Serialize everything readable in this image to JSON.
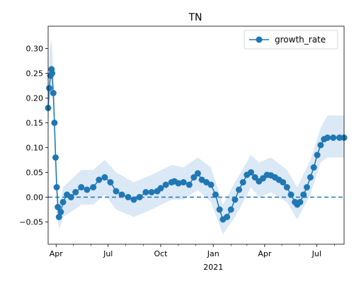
{
  "chart_data": {
    "type": "line",
    "title": "TN",
    "xlabel": "",
    "ylabel": "",
    "x_range": [
      "2020-03-18",
      "2021-08-18"
    ],
    "ylim": [
      -0.095,
      0.345
    ],
    "y_ticks": [
      -0.05,
      0.0,
      0.05,
      0.1,
      0.15,
      0.2,
      0.25,
      0.3
    ],
    "y_tick_labels": [
      "−0.05",
      "0.00",
      "0.05",
      "0.10",
      "0.15",
      "0.20",
      "0.25",
      "0.30"
    ],
    "x_ticks": [
      {
        "date": "2020-04-01",
        "label": "Apr"
      },
      {
        "date": "2020-07-01",
        "label": "Jul"
      },
      {
        "date": "2020-10-01",
        "label": "Oct"
      },
      {
        "date": "2021-01-01",
        "label": "Jan"
      },
      {
        "date": "2021-04-01",
        "label": "Apr"
      },
      {
        "date": "2021-07-01",
        "label": "Jul"
      }
    ],
    "x_secondary_label": "2021",
    "minor_ticks": [
      "2020-05-01",
      "2020-06-01",
      "2020-08-01",
      "2020-09-01",
      "2020-11-01",
      "2020-12-01",
      "2021-02-01",
      "2021-03-01",
      "2021-05-01",
      "2021-06-01",
      "2021-08-01"
    ],
    "grid": false,
    "legend": {
      "position": "top-right",
      "entries": [
        "growth_rate"
      ]
    },
    "reference_line": {
      "y": 0.0,
      "style": "dashed"
    },
    "colors": {
      "series": "#1f77b4",
      "band": "#dbe8f5"
    },
    "series": [
      {
        "name": "growth_rate",
        "points": [
          [
            "2020-03-18",
            0.18
          ],
          [
            "2020-03-20",
            0.22
          ],
          [
            "2020-03-22",
            0.245
          ],
          [
            "2020-03-24",
            0.258
          ],
          [
            "2020-03-25",
            0.25
          ],
          [
            "2020-03-27",
            0.21
          ],
          [
            "2020-03-29",
            0.15
          ],
          [
            "2020-03-31",
            0.08
          ],
          [
            "2020-04-02",
            0.02
          ],
          [
            "2020-04-04",
            -0.02
          ],
          [
            "2020-04-06",
            -0.04
          ],
          [
            "2020-04-09",
            -0.03
          ],
          [
            "2020-04-13",
            -0.01
          ],
          [
            "2020-04-20",
            0.005
          ],
          [
            "2020-04-27",
            0.0
          ],
          [
            "2020-05-05",
            0.01
          ],
          [
            "2020-05-15",
            0.02
          ],
          [
            "2020-05-25",
            0.015
          ],
          [
            "2020-06-05",
            0.02
          ],
          [
            "2020-06-15",
            0.035
          ],
          [
            "2020-06-25",
            0.04
          ],
          [
            "2020-07-05",
            0.03
          ],
          [
            "2020-07-15",
            0.012
          ],
          [
            "2020-07-25",
            0.005
          ],
          [
            "2020-08-05",
            0.0
          ],
          [
            "2020-08-15",
            -0.005
          ],
          [
            "2020-08-25",
            0.0
          ],
          [
            "2020-09-05",
            0.01
          ],
          [
            "2020-09-15",
            0.01
          ],
          [
            "2020-09-25",
            0.012
          ],
          [
            "2020-10-01",
            0.018
          ],
          [
            "2020-10-10",
            0.025
          ],
          [
            "2020-10-20",
            0.03
          ],
          [
            "2020-10-25",
            0.032
          ],
          [
            "2020-11-01",
            0.028
          ],
          [
            "2020-11-10",
            0.03
          ],
          [
            "2020-11-20",
            0.025
          ],
          [
            "2020-11-28",
            0.04
          ],
          [
            "2020-12-05",
            0.048
          ],
          [
            "2020-12-12",
            0.035
          ],
          [
            "2020-12-20",
            0.03
          ],
          [
            "2020-12-28",
            0.025
          ],
          [
            "2021-01-05",
            0.005
          ],
          [
            "2021-01-12",
            -0.025
          ],
          [
            "2021-01-18",
            -0.045
          ],
          [
            "2021-01-25",
            -0.04
          ],
          [
            "2021-02-01",
            -0.025
          ],
          [
            "2021-02-08",
            -0.005
          ],
          [
            "2021-02-15",
            0.015
          ],
          [
            "2021-02-22",
            0.03
          ],
          [
            "2021-03-01",
            0.045
          ],
          [
            "2021-03-08",
            0.05
          ],
          [
            "2021-03-15",
            0.04
          ],
          [
            "2021-03-22",
            0.032
          ],
          [
            "2021-03-29",
            0.038
          ],
          [
            "2021-04-05",
            0.045
          ],
          [
            "2021-04-12",
            0.044
          ],
          [
            "2021-04-19",
            0.04
          ],
          [
            "2021-04-26",
            0.035
          ],
          [
            "2021-05-03",
            0.03
          ],
          [
            "2021-05-10",
            0.02
          ],
          [
            "2021-05-17",
            0.005
          ],
          [
            "2021-05-24",
            -0.01
          ],
          [
            "2021-05-28",
            -0.015
          ],
          [
            "2021-06-02",
            -0.01
          ],
          [
            "2021-06-08",
            0.005
          ],
          [
            "2021-06-14",
            0.02
          ],
          [
            "2021-06-20",
            0.04
          ],
          [
            "2021-06-26",
            0.06
          ],
          [
            "2021-07-02",
            0.085
          ],
          [
            "2021-07-08",
            0.105
          ],
          [
            "2021-07-14",
            0.117
          ],
          [
            "2021-07-20",
            0.12
          ],
          [
            "2021-07-30",
            0.12
          ],
          [
            "2021-08-10",
            0.12
          ],
          [
            "2021-08-18",
            0.12
          ]
        ],
        "band": [
          [
            "2020-03-18",
            0.14,
            0.22
          ],
          [
            "2020-03-21",
            0.2,
            0.3
          ],
          [
            "2020-03-24",
            0.225,
            0.32
          ],
          [
            "2020-03-27",
            0.18,
            0.26
          ],
          [
            "2020-03-31",
            0.05,
            0.12
          ],
          [
            "2020-04-04",
            -0.05,
            0.01
          ],
          [
            "2020-04-07",
            -0.065,
            -0.015
          ],
          [
            "2020-04-13",
            -0.04,
            0.02
          ],
          [
            "2020-04-27",
            -0.03,
            0.035
          ],
          [
            "2020-05-15",
            -0.015,
            0.055
          ],
          [
            "2020-06-05",
            -0.015,
            0.055
          ],
          [
            "2020-06-25",
            0.005,
            0.075
          ],
          [
            "2020-07-15",
            -0.025,
            0.05
          ],
          [
            "2020-08-15",
            -0.04,
            0.03
          ],
          [
            "2020-09-15",
            -0.025,
            0.045
          ],
          [
            "2020-10-20",
            -0.005,
            0.065
          ],
          [
            "2020-11-10",
            -0.005,
            0.06
          ],
          [
            "2020-12-05",
            0.015,
            0.08
          ],
          [
            "2020-12-28",
            -0.01,
            0.06
          ],
          [
            "2021-01-18",
            -0.075,
            -0.015
          ],
          [
            "2021-02-08",
            -0.04,
            0.03
          ],
          [
            "2021-03-08",
            0.02,
            0.085
          ],
          [
            "2021-03-22",
            0.0,
            0.07
          ],
          [
            "2021-04-12",
            0.01,
            0.08
          ],
          [
            "2021-05-10",
            -0.01,
            0.055
          ],
          [
            "2021-05-28",
            -0.045,
            0.02
          ],
          [
            "2021-06-20",
            0.005,
            0.075
          ],
          [
            "2021-07-08",
            0.07,
            0.14
          ],
          [
            "2021-07-20",
            0.08,
            0.165
          ],
          [
            "2021-08-18",
            0.08,
            0.165
          ]
        ]
      }
    ]
  }
}
